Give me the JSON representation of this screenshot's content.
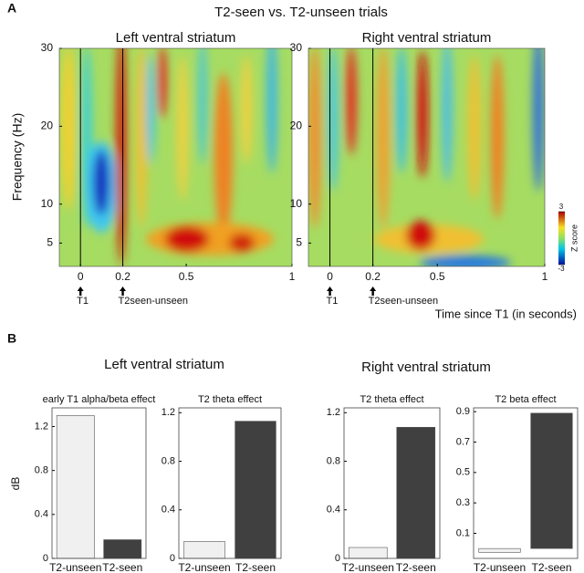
{
  "panel_a": {
    "label": "A",
    "title": "T2-seen vs. T2-unseen trials",
    "x_label": "Time since T1 (in seconds)",
    "y_label": "Frequency (Hz)",
    "colorbar": {
      "label": "Z score",
      "lim": [
        -3,
        3
      ],
      "ticks": [
        3,
        -3
      ]
    }
  },
  "panel_b": {
    "label": "B",
    "groups": [
      "Left ventral striatum",
      "Right ventral striatum"
    ],
    "y_label": "dB"
  },
  "chart_data": [
    {
      "type": "heatmap",
      "title": "Left ventral striatum",
      "xlim": [
        -0.1,
        1
      ],
      "xticks": [
        0,
        0.2,
        0.5,
        1
      ],
      "ylim": [
        2,
        30
      ],
      "yticks": [
        5,
        10,
        20,
        30
      ],
      "event_lines": [
        0,
        0.2
      ],
      "annotations": [
        {
          "x": 0,
          "text": "T1"
        },
        {
          "x": 0.2,
          "text": "T2seen-unseen"
        }
      ]
    },
    {
      "type": "heatmap",
      "title": "Right ventral striatum",
      "xlim": [
        -0.1,
        1
      ],
      "xticks": [
        0,
        0.2,
        0.5,
        1
      ],
      "ylim": [
        2,
        30
      ],
      "yticks": [
        5,
        10,
        20,
        30
      ],
      "event_lines": [
        0,
        0.2
      ],
      "annotations": [
        {
          "x": 0,
          "text": "T1"
        },
        {
          "x": 0.2,
          "text": "T2seen-unseen"
        }
      ]
    },
    {
      "type": "bar",
      "title": "early T1 alpha/beta effect",
      "categories": [
        "T2-unseen",
        "T2-seen"
      ],
      "values": [
        1.3,
        0.17
      ],
      "colors": [
        "#f0f0f0",
        "#404040"
      ],
      "ylim": [
        0,
        1.37
      ],
      "yticks": [
        0,
        0.4,
        0.8,
        1.2
      ]
    },
    {
      "type": "bar",
      "title": "T2 theta effect",
      "categories": [
        "T2-unseen",
        "T2-seen"
      ],
      "values": [
        0.14,
        1.13
      ],
      "colors": [
        "#f0f0f0",
        "#404040"
      ],
      "ylim": [
        0,
        1.24
      ],
      "yticks": [
        0,
        0.4,
        0.8,
        1.2
      ]
    },
    {
      "type": "bar",
      "title": "T2 theta effect",
      "categories": [
        "T2-unseen",
        "T2-seen"
      ],
      "values": [
        0.09,
        1.08
      ],
      "colors": [
        "#f0f0f0",
        "#404040"
      ],
      "ylim": [
        0,
        1.24
      ],
      "yticks": [
        0,
        0.4,
        0.8,
        1.2
      ]
    },
    {
      "type": "bar",
      "title": "T2 beta effect",
      "categories": [
        "T2-unseen",
        "T2-seen"
      ],
      "values": [
        -0.025,
        0.89
      ],
      "colors": [
        "#f0f0f0",
        "#404040"
      ],
      "ylim": [
        -0.065,
        0.925
      ],
      "yticks": [
        0.1,
        0.3,
        0.5,
        0.7,
        0.9
      ]
    }
  ]
}
